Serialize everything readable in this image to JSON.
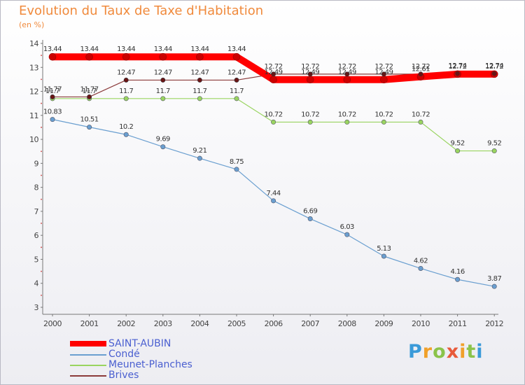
{
  "page": {
    "title": "Evolution du Taux de Taxe d'Habitation",
    "subtitle": "(en %)"
  },
  "chart_data": {
    "type": "line",
    "title": "Evolution du Taux de Taxe d'Habitation",
    "ylabel": "(en %)",
    "xlabel": "",
    "x": [
      "2000",
      "2001",
      "2002",
      "2003",
      "2004",
      "2005",
      "2006",
      "2007",
      "2008",
      "2009",
      "2010",
      "2011",
      "2012"
    ],
    "ylim": [
      3,
      14
    ],
    "yticks": [
      3,
      4,
      5,
      6,
      7,
      8,
      9,
      10,
      11,
      12,
      13,
      14
    ],
    "grid": false,
    "legend_position": "bottom-left",
    "series": [
      {
        "name": "SAINT-AUBIN",
        "color": "#ff0000",
        "values": [
          13.44,
          13.44,
          13.44,
          13.44,
          13.44,
          13.44,
          12.49,
          12.49,
          12.49,
          12.49,
          12.61,
          12.72,
          12.72
        ],
        "labels": [
          "13.44",
          "13.44",
          "13.44",
          "13.44",
          "13.44",
          "13.44",
          "12.49",
          "12.49",
          "12.49",
          "12.49",
          "12.61",
          "12.72",
          "12.72"
        ]
      },
      {
        "name": "Condé",
        "color": "#6a9fd0",
        "values": [
          10.83,
          10.51,
          10.2,
          9.69,
          9.21,
          8.75,
          7.44,
          6.69,
          6.03,
          5.13,
          4.62,
          4.16,
          3.87
        ],
        "labels": [
          "10.83",
          "10.51",
          "10.2",
          "9.69",
          "9.21",
          "8.75",
          "7.44",
          "6.69",
          "6.03",
          "5.13",
          "4.62",
          "4.16",
          "3.87"
        ]
      },
      {
        "name": "Meunet-Planches",
        "color": "#99d460",
        "values": [
          11.7,
          11.7,
          11.7,
          11.7,
          11.7,
          11.7,
          10.72,
          10.72,
          10.72,
          10.72,
          10.72,
          9.52,
          9.52
        ],
        "labels": [
          "11.7",
          "11.7",
          "11.7",
          "11.7",
          "11.7",
          "11.7",
          "10.72",
          "10.72",
          "10.72",
          "10.72",
          "10.72",
          "9.52",
          "9.52"
        ]
      },
      {
        "name": "Brives",
        "color": "#8b3a3a",
        "values": [
          11.77,
          11.77,
          12.47,
          12.47,
          12.47,
          12.47,
          12.72,
          12.72,
          12.72,
          12.72,
          12.72,
          12.74,
          12.74
        ],
        "labels": [
          "11.77",
          "11.77",
          "12.47",
          "12.47",
          "12.47",
          "12.47",
          "12.72",
          "12.72",
          "12.72",
          "12.72",
          "12.72",
          "12.74",
          "12.74"
        ]
      }
    ]
  },
  "legend": {
    "items": [
      {
        "label": "SAINT-AUBIN",
        "color": "#ff0000"
      },
      {
        "label": "Condé",
        "color": "#6a9fd0"
      },
      {
        "label": "Meunet-Planches",
        "color": "#99d460"
      },
      {
        "label": "Brives",
        "color": "#8b3a3a"
      }
    ]
  },
  "logo": {
    "text": "Proxiti",
    "letters": [
      "P",
      "r",
      "o",
      "x",
      "i",
      "t",
      "i"
    ]
  }
}
